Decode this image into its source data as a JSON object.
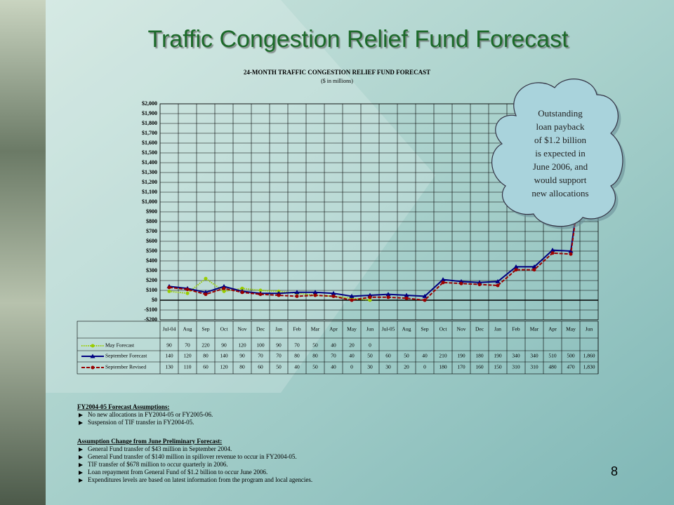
{
  "slide_title": "Traffic Congestion Relief Fund Forecast",
  "page_number": "8",
  "callout": [
    "Outstanding",
    "loan payback",
    "of $1.2 billion",
    "is expected in",
    "June 2006, and",
    "would support",
    "new allocations"
  ],
  "assumptions": [
    {
      "heading": "FY2004-05 Forecast Assumptions:",
      "items": [
        "No new allocations in FY2004-05 or FY2005-06.",
        "Suspension of TIF transfer in FY2004-05."
      ]
    },
    {
      "heading": "Assumption Change from June Preliminary Forecast:",
      "items": [
        "General Fund transfer of $43 million in September 2004.",
        "General Fund transfer of $140 million in spillover revenue to occur in FY2004-05.",
        "TIF transfer of $678 million to occur quarterly in 2006.",
        "Loan repayment from General Fund of $1.2 billion to occur June 2006.",
        "Expenditures levels are based on latest information from the program and local agencies."
      ]
    }
  ],
  "chart_data": {
    "type": "line",
    "title": "24-MONTH TRAFFIC CONGESTION RELIEF FUND FORECAST",
    "subtitle": "($ in millions)",
    "categories": [
      "Jul-04",
      "Aug",
      "Sep",
      "Oct",
      "Nov",
      "Dec",
      "Jan",
      "Feb",
      "Mar",
      "Apr",
      "May",
      "Jun",
      "Jul-05",
      "Aug",
      "Sep",
      "Oct",
      "Nov",
      "Dec",
      "Jan",
      "Feb",
      "Mar",
      "Apr",
      "May",
      "Jun"
    ],
    "series": [
      {
        "name": "May Forecast",
        "color": "#99cc00",
        "marker": "circle",
        "dash": "dotted",
        "values": [
          90,
          70,
          220,
          90,
          120,
          100,
          90,
          70,
          50,
          40,
          20,
          0,
          null,
          null,
          null,
          null,
          null,
          null,
          null,
          null,
          null,
          null,
          null,
          null
        ]
      },
      {
        "name": "September Forecast",
        "color": "#000080",
        "marker": "triangle",
        "dash": "solid",
        "values": [
          140,
          120,
          80,
          140,
          90,
          70,
          70,
          80,
          80,
          70,
          40,
          50,
          60,
          50,
          40,
          210,
          190,
          180,
          190,
          340,
          340,
          510,
          500,
          1860
        ],
        "value_labels": [
          "140",
          "120",
          "80",
          "140",
          "90",
          "70",
          "70",
          "80",
          "80",
          "70",
          "40",
          "50",
          "60",
          "50",
          "40",
          "210",
          "190",
          "180",
          "190",
          "340",
          "340",
          "510",
          "500",
          "1,860"
        ]
      },
      {
        "name": "September Revised",
        "color": "#990000",
        "marker": "circle",
        "dash": "dashed",
        "values": [
          130,
          110,
          60,
          120,
          80,
          60,
          50,
          40,
          50,
          40,
          0,
          30,
          30,
          20,
          0,
          180,
          170,
          160,
          150,
          310,
          310,
          480,
          470,
          1830
        ],
        "value_labels": [
          "130",
          "110",
          "60",
          "120",
          "80",
          "60",
          "50",
          "40",
          "50",
          "40",
          "0",
          "30",
          "30",
          "20",
          "0",
          "180",
          "170",
          "160",
          "150",
          "310",
          "310",
          "480",
          "470",
          "1,830"
        ]
      }
    ],
    "ylim": [
      -200,
      2000
    ],
    "yticks": [
      {
        "value": -200,
        "label": "-$200"
      },
      {
        "value": -100,
        "label": "-$100"
      },
      {
        "value": 0,
        "label": "$0"
      },
      {
        "value": 100,
        "label": "$100"
      },
      {
        "value": 200,
        "label": "$200"
      },
      {
        "value": 300,
        "label": "$300"
      },
      {
        "value": 400,
        "label": "$400"
      },
      {
        "value": 500,
        "label": "$500"
      },
      {
        "value": 600,
        "label": "$600"
      },
      {
        "value": 700,
        "label": "$700"
      },
      {
        "value": 800,
        "label": "$800"
      },
      {
        "value": 900,
        "label": "$900"
      },
      {
        "value": 1000,
        "label": "$1,000"
      },
      {
        "value": 1100,
        "label": "$1,100"
      },
      {
        "value": 1200,
        "label": "$1,200"
      },
      {
        "value": 1300,
        "label": "$1,300"
      },
      {
        "value": 1400,
        "label": "$1,400"
      },
      {
        "value": 1500,
        "label": "$1,500"
      },
      {
        "value": 1600,
        "label": "$1,600"
      },
      {
        "value": 1700,
        "label": "$1,700"
      },
      {
        "value": 1800,
        "label": "$1,800"
      },
      {
        "value": 1900,
        "label": "$1,900"
      },
      {
        "value": 2000,
        "label": "$2,000"
      }
    ],
    "grid": true
  }
}
